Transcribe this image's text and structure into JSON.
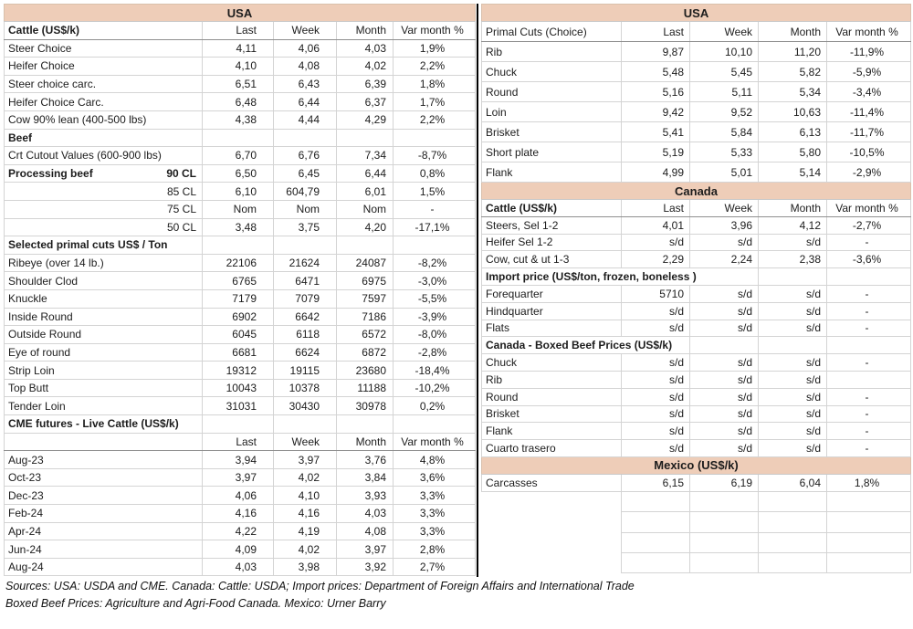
{
  "colors": {
    "band_background": "#eecdb8",
    "gridline": "#d4d4d4",
    "header_underline": "#8f8f8f",
    "divider": "#000000",
    "text": "#1c1c1c"
  },
  "left_table": {
    "rows": [
      {
        "kind": "band",
        "label": "USA"
      },
      {
        "kind": "colhead",
        "label": "Cattle (US$/k)",
        "bold": true,
        "cells": [
          "Last",
          "Week",
          "Month",
          "Var month %"
        ]
      },
      {
        "label": "Steer Choice",
        "cells": [
          "4,11",
          "4,06",
          "4,03",
          "1,9%"
        ]
      },
      {
        "label": "Heifer Choice",
        "cells": [
          "4,10",
          "4,08",
          "4,02",
          "2,2%"
        ]
      },
      {
        "label": "Steer choice carc.",
        "cells": [
          "6,51",
          "6,43",
          "6,39",
          "1,8%"
        ]
      },
      {
        "label": "Heifer Choice Carc.",
        "cells": [
          "6,48",
          "6,44",
          "6,37",
          "1,7%"
        ]
      },
      {
        "label": "Cow 90% lean (400-500 lbs)",
        "cells": [
          "4,38",
          "4,44",
          "4,29",
          "2,2%"
        ]
      },
      {
        "label": "Beef",
        "bold": true,
        "cells": [
          "",
          "",
          "",
          ""
        ]
      },
      {
        "label": "Crt Cutout Values (600-900 lbs)",
        "cells": [
          "6,70",
          "6,76",
          "7,34",
          "-8,7%"
        ]
      },
      {
        "label": "Processing beef",
        "label2": "90 CL",
        "bold": true,
        "cells": [
          "6,50",
          "6,45",
          "6,44",
          "0,8%"
        ]
      },
      {
        "label": "85 CL",
        "labelRight": true,
        "cells": [
          "6,10",
          "604,79",
          "6,01",
          "1,5%"
        ]
      },
      {
        "label": "75 CL",
        "labelRight": true,
        "cells": [
          "Nom",
          "Nom",
          "Nom",
          "-"
        ]
      },
      {
        "label": "50 CL",
        "labelRight": true,
        "cells": [
          "3,48",
          "3,75",
          "4,20",
          "-17,1%"
        ]
      },
      {
        "label": "Selected primal cuts US$ / Ton",
        "bold": true,
        "cells": [
          "",
          "",
          "",
          ""
        ]
      },
      {
        "label": "Ribeye (over 14 lb.)",
        "cells": [
          "22106",
          "21624",
          "24087",
          "-8,2%"
        ]
      },
      {
        "label": "Shoulder Clod",
        "cells": [
          "6765",
          "6471",
          "6975",
          "-3,0%"
        ]
      },
      {
        "label": "Knuckle",
        "cells": [
          "7179",
          "7079",
          "7597",
          "-5,5%"
        ]
      },
      {
        "label": "Inside Round",
        "cells": [
          "6902",
          "6642",
          "7186",
          "-3,9%"
        ]
      },
      {
        "label": "Outside Round",
        "cells": [
          "6045",
          "6118",
          "6572",
          "-8,0%"
        ]
      },
      {
        "label": "Eye of round",
        "cells": [
          "6681",
          "6624",
          "6872",
          "-2,8%"
        ]
      },
      {
        "label": "Strip Loin",
        "cells": [
          "19312",
          "19115",
          "23680",
          "-18,4%"
        ]
      },
      {
        "label": "Top Butt",
        "cells": [
          "10043",
          "10378",
          "11188",
          "-10,2%"
        ]
      },
      {
        "label": "Tender Loin",
        "cells": [
          "31031",
          "30430",
          "30978",
          "0,2%"
        ]
      },
      {
        "label": "CME futures - Live Cattle (US$/k)",
        "bold": true,
        "cells": [
          "",
          "",
          "",
          ""
        ]
      },
      {
        "kind": "colhead",
        "label": "",
        "cells": [
          "Last",
          "Week",
          "Month",
          "Var month %"
        ]
      },
      {
        "label": "Aug-23",
        "cells": [
          "3,94",
          "3,97",
          "3,76",
          "4,8%"
        ]
      },
      {
        "label": "Oct-23",
        "cells": [
          "3,97",
          "4,02",
          "3,84",
          "3,6%"
        ]
      },
      {
        "label": "Dec-23",
        "cells": [
          "4,06",
          "4,10",
          "3,93",
          "3,3%"
        ]
      },
      {
        "label": "Feb-24",
        "cells": [
          "4,16",
          "4,16",
          "4,03",
          "3,3%"
        ]
      },
      {
        "label": "Apr-24",
        "cells": [
          "4,22",
          "4,19",
          "4,08",
          "3,3%"
        ]
      },
      {
        "label": "Jun-24",
        "cells": [
          "4,09",
          "4,02",
          "3,97",
          "2,8%"
        ]
      },
      {
        "label": "Aug-24",
        "cells": [
          "4,03",
          "3,98",
          "3,92",
          "2,7%"
        ]
      }
    ]
  },
  "right_table": {
    "rows": [
      {
        "kind": "band",
        "label": "USA"
      },
      {
        "kind": "colhead",
        "label": "Primal Cuts (Choice)",
        "cells": [
          "Last",
          "Week",
          "Month",
          "Var month %"
        ]
      },
      {
        "label": "Rib",
        "cells": [
          "9,87",
          "10,10",
          "11,20",
          "-11,9%"
        ]
      },
      {
        "label": "Chuck",
        "cells": [
          "5,48",
          "5,45",
          "5,82",
          "-5,9%"
        ]
      },
      {
        "label": "Round",
        "cells": [
          "5,16",
          "5,11",
          "5,34",
          "-3,4%"
        ]
      },
      {
        "label": "Loin",
        "cells": [
          "9,42",
          "9,52",
          "10,63",
          "-11,4%"
        ]
      },
      {
        "label": "Brisket",
        "cells": [
          "5,41",
          "5,84",
          "6,13",
          "-11,7%"
        ]
      },
      {
        "label": "Short plate",
        "cells": [
          "5,19",
          "5,33",
          "5,80",
          "-10,5%"
        ]
      },
      {
        "label": "Flank",
        "cells": [
          "4,99",
          "5,01",
          "5,14",
          "-2,9%"
        ]
      },
      {
        "kind": "band",
        "label": "Canada"
      },
      {
        "kind": "colhead",
        "label": "Cattle (US$/k)",
        "bold": true,
        "cells": [
          "Last",
          "Week",
          "Month",
          "Var month %"
        ]
      },
      {
        "label": "Steers, Sel 1-2",
        "cells": [
          "4,01",
          "3,96",
          "4,12",
          "-2,7%"
        ]
      },
      {
        "label": "Heifer Sel 1-2",
        "cells": [
          "s/d",
          "s/d",
          "s/d",
          "-"
        ]
      },
      {
        "label": "Cow, cut & ut 1-3",
        "cells": [
          "2,29",
          "2,24",
          "2,38",
          "-3,6%"
        ]
      },
      {
        "label": "Import price (US$/ton, frozen, boneless )",
        "bold": true,
        "span": 3,
        "cells": [
          "",
          "",
          "",
          ""
        ]
      },
      {
        "label": "Forequarter",
        "cells": [
          "5710",
          "s/d",
          "s/d",
          "-"
        ]
      },
      {
        "label": "Hindquarter",
        "cells": [
          "s/d",
          "s/d",
          "s/d",
          "-"
        ]
      },
      {
        "label": "Flats",
        "cells": [
          "s/d",
          "s/d",
          "s/d",
          "-"
        ]
      },
      {
        "label": "Canada - Boxed Beef Prices (US$/k)",
        "bold": true,
        "span": 2,
        "cells": [
          "",
          "",
          "",
          ""
        ]
      },
      {
        "label": "Chuck",
        "cells": [
          "s/d",
          "s/d",
          "s/d",
          "-"
        ]
      },
      {
        "label": "Rib",
        "cells": [
          "s/d",
          "s/d",
          "s/d",
          ""
        ]
      },
      {
        "label": "Round",
        "cells": [
          "s/d",
          "s/d",
          "s/d",
          "-"
        ]
      },
      {
        "label": "Brisket",
        "cells": [
          "s/d",
          "s/d",
          "s/d",
          "-"
        ]
      },
      {
        "label": "Flank",
        "cells": [
          "s/d",
          "s/d",
          "s/d",
          "-"
        ]
      },
      {
        "label": "Cuarto trasero",
        "cells": [
          "s/d",
          "s/d",
          "s/d",
          "-"
        ]
      },
      {
        "kind": "band",
        "label": "Mexico (US$/k)"
      },
      {
        "label": "Carcasses",
        "cells": [
          "6,15",
          "6,19",
          "6,04",
          "1,8%"
        ]
      },
      {
        "kind": "empty",
        "label": "",
        "cells": [
          "",
          "",
          "",
          ""
        ]
      },
      {
        "kind": "empty",
        "label": "",
        "cells": [
          "",
          "",
          "",
          ""
        ]
      },
      {
        "kind": "empty",
        "label": "",
        "cells": [
          "",
          "",
          "",
          ""
        ]
      },
      {
        "kind": "empty",
        "label": "",
        "cells": [
          "",
          "",
          "",
          ""
        ]
      }
    ]
  },
  "footer": {
    "line1": "Sources: USA: USDA and CME. Canada: Cattle: USDA; Import prices: Department of Foreign Affairs and International Trade",
    "line2": "Boxed Beef Prices: Agriculture and Agri-Food Canada. Mexico: Urner Barry"
  }
}
